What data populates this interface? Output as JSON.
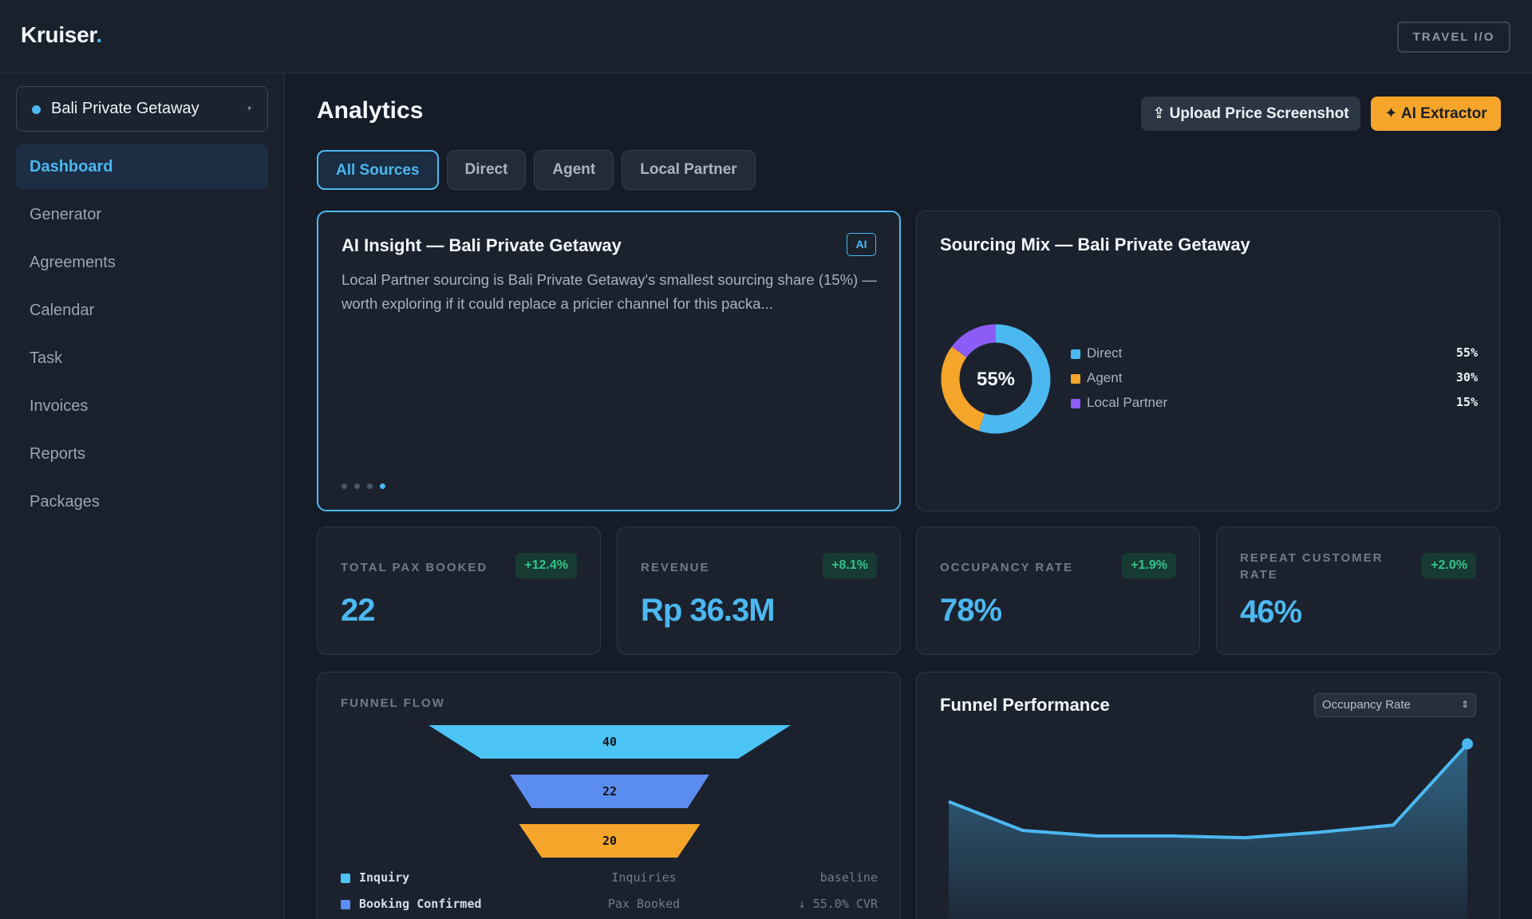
{
  "app": {
    "logo": "Kruiser",
    "logo_dot": ".",
    "header_button": "TRAVEL I/O"
  },
  "sidebar": {
    "package_select": "Bali Private Getaway",
    "caret": "▾",
    "items": [
      {
        "label": "Dashboard",
        "active": true
      },
      {
        "label": "Generator"
      },
      {
        "label": "Agreements"
      },
      {
        "label": "Calendar"
      },
      {
        "label": "Task"
      },
      {
        "label": "Invoices"
      },
      {
        "label": "Reports"
      },
      {
        "label": "Packages"
      }
    ]
  },
  "main": {
    "title": "Analytics",
    "upload_button": "⇪ Upload Price Screenshot",
    "ai_button": "✦ AI Extractor",
    "tabs": [
      "All Sources",
      "Direct",
      "Agent",
      "Local Partner"
    ],
    "active_tab": 0
  },
  "insight": {
    "title": "AI Insight — Bali Private Getaway",
    "badge": "AI",
    "body": "Local Partner sourcing is Bali Private Getaway's smallest sourcing share (15%) — worth exploring if it could replace a pricier channel for this packa...",
    "pages": 4,
    "current_page": 4
  },
  "sourcing_mix": {
    "title": "Sourcing Mix — Bali Private Getaway",
    "center_label": "55%",
    "items": [
      {
        "label": "Direct",
        "value": 55,
        "display": "55%",
        "color": "#4cb8f0"
      },
      {
        "label": "Agent",
        "value": 30,
        "display": "30%",
        "color": "#f4a52a"
      },
      {
        "label": "Local Partner",
        "value": 15,
        "display": "15%",
        "color": "#8b5cf6"
      }
    ]
  },
  "kpis": [
    {
      "label": "TOTAL PAX BOOKED",
      "delta": "+12.4%",
      "value": "22"
    },
    {
      "label": "REVENUE",
      "delta": "+8.1%",
      "value": "Rp 36.3M"
    },
    {
      "label": "OCCUPANCY RATE",
      "delta": "+1.9%",
      "value": "78%"
    },
    {
      "label": "REPEAT CUSTOMER RATE",
      "delta": "+2.0%",
      "value": "46%"
    }
  ],
  "funnel": {
    "header": "FUNNEL FLOW",
    "stages": [
      {
        "value": 40,
        "label": "40",
        "color": "#4cc4f5"
      },
      {
        "value": 22,
        "label": "22",
        "color": "#5b8def"
      },
      {
        "value": 20,
        "label": "20",
        "color": "#f4a52a"
      }
    ],
    "legend": [
      {
        "stage": "Inquiry",
        "metric": "Inquiries",
        "note": "baseline",
        "color": "#4cc4f5"
      },
      {
        "stage": "Booking Confirmed",
        "metric": "Pax Booked",
        "note": "↓ 55.0% CVR",
        "color": "#5b8def"
      }
    ]
  },
  "performance": {
    "title": "Funnel Performance",
    "select_value": "Occupancy Rate",
    "select_arrow": "⇕"
  },
  "chart_data": {
    "type": "area",
    "series": [
      {
        "values": [
          62,
          46,
          43,
          43,
          42,
          45,
          49,
          94
        ]
      }
    ],
    "ylim": [
      0,
      100
    ],
    "line_color": "#4cb8f0"
  }
}
